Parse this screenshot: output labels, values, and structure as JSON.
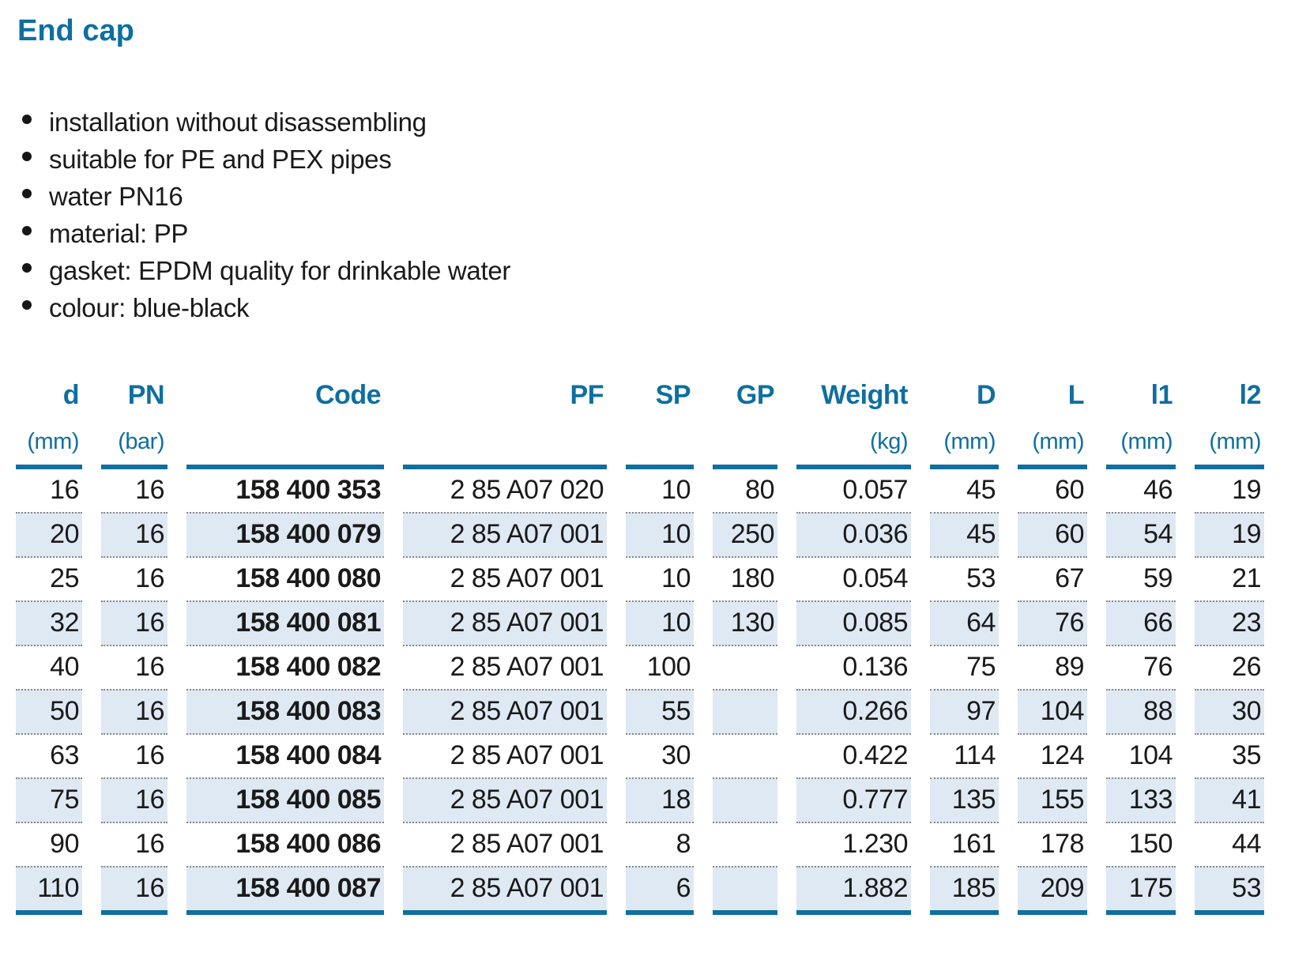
{
  "title": "End cap",
  "features": [
    "installation without disassembling",
    "suitable for PE and PEX pipes",
    "water PN16",
    "material: PP",
    "gasket: EPDM quality for drinkable water",
    "colour: blue-black"
  ],
  "colors": {
    "accent_blue": "#0e6fa0",
    "stripe_blue": "#dfe9f3",
    "text_black": "#1a1a1a"
  },
  "table": {
    "columns": [
      {
        "key": "d",
        "label": "d",
        "unit": "(mm)"
      },
      {
        "key": "pn",
        "label": "PN",
        "unit": "(bar)"
      },
      {
        "key": "code",
        "label": "Code",
        "unit": ""
      },
      {
        "key": "pf",
        "label": "PF",
        "unit": ""
      },
      {
        "key": "sp",
        "label": "SP",
        "unit": ""
      },
      {
        "key": "gp",
        "label": "GP",
        "unit": ""
      },
      {
        "key": "weight",
        "label": "Weight",
        "unit": "(kg)"
      },
      {
        "key": "D",
        "label": "D",
        "unit": "(mm)"
      },
      {
        "key": "L",
        "label": "L",
        "unit": "(mm)"
      },
      {
        "key": "l1",
        "label": "l1",
        "unit": "(mm)"
      },
      {
        "key": "l2",
        "label": "l2",
        "unit": "(mm)"
      }
    ],
    "rows": [
      [
        "16",
        "16",
        "158 400 353",
        "2 85 A07 020",
        "10",
        "80",
        "0.057",
        "45",
        "60",
        "46",
        "19"
      ],
      [
        "20",
        "16",
        "158 400 079",
        "2 85 A07 001",
        "10",
        "250",
        "0.036",
        "45",
        "60",
        "54",
        "19"
      ],
      [
        "25",
        "16",
        "158 400 080",
        "2 85 A07 001",
        "10",
        "180",
        "0.054",
        "53",
        "67",
        "59",
        "21"
      ],
      [
        "32",
        "16",
        "158 400 081",
        "2 85 A07 001",
        "10",
        "130",
        "0.085",
        "64",
        "76",
        "66",
        "23"
      ],
      [
        "40",
        "16",
        "158 400 082",
        "2 85 A07 001",
        "100",
        "",
        "0.136",
        "75",
        "89",
        "76",
        "26"
      ],
      [
        "50",
        "16",
        "158 400 083",
        "2 85 A07 001",
        "55",
        "",
        "0.266",
        "97",
        "104",
        "88",
        "30"
      ],
      [
        "63",
        "16",
        "158 400 084",
        "2 85 A07 001",
        "30",
        "",
        "0.422",
        "114",
        "124",
        "104",
        "35"
      ],
      [
        "75",
        "16",
        "158 400 085",
        "2 85 A07 001",
        "18",
        "",
        "0.777",
        "135",
        "155",
        "133",
        "41"
      ],
      [
        "90",
        "16",
        "158 400 086",
        "2 85 A07 001",
        "8",
        "",
        "1.230",
        "161",
        "178",
        "150",
        "44"
      ],
      [
        "110",
        "16",
        "158 400 087",
        "2 85 A07 001",
        "6",
        "",
        "1.882",
        "185",
        "209",
        "175",
        "53"
      ]
    ]
  }
}
